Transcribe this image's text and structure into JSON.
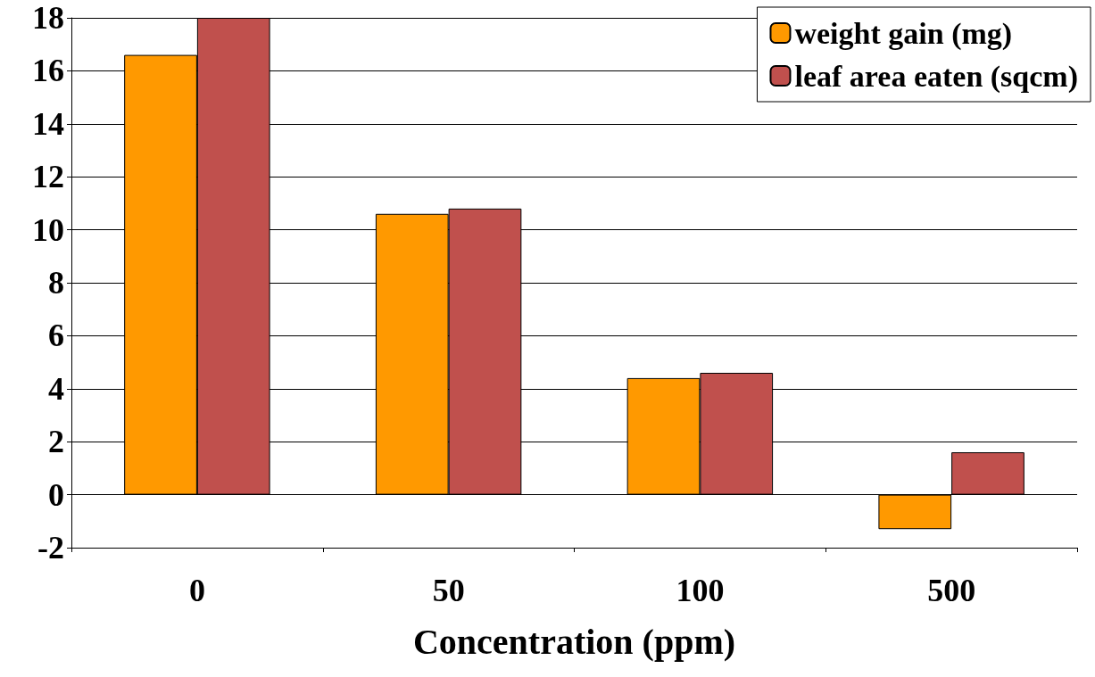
{
  "chart_data": {
    "type": "bar",
    "xlabel": "Concentration (ppm)",
    "categories": [
      "0",
      "50",
      "100",
      "500"
    ],
    "series": [
      {
        "name": "weight gain (mg)",
        "color": "#ff9900",
        "values": [
          16.6,
          10.6,
          4.4,
          -1.3
        ]
      },
      {
        "name": "leaf area eaten (sqcm)",
        "color": "#c0504d",
        "values": [
          18.0,
          10.8,
          4.6,
          1.6
        ]
      }
    ],
    "ylim": [
      -2,
      18
    ],
    "yticks": [
      -2,
      0,
      2,
      4,
      6,
      8,
      10,
      12,
      14,
      16,
      18
    ],
    "grid": "y",
    "legend": "top right"
  }
}
